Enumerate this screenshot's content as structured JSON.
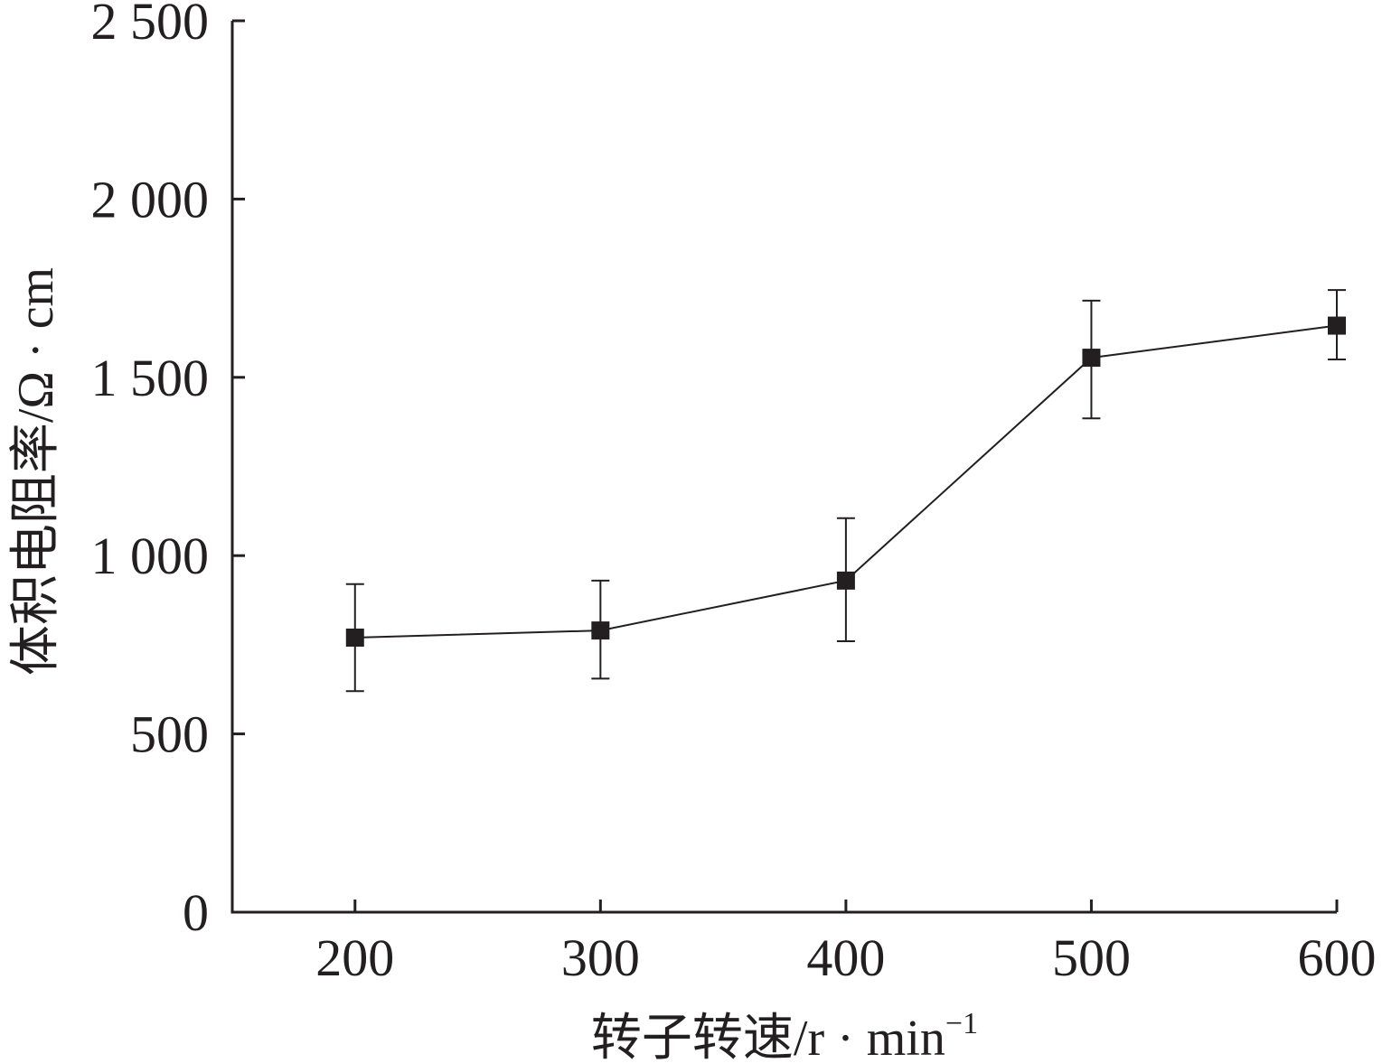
{
  "chart_data": {
    "type": "line",
    "title": "",
    "xlabel": "转子转速/r · min",
    "xlabel_superscript": "−1",
    "ylabel": "体积电阻率/Ω · cm",
    "x": [
      200,
      300,
      400,
      500,
      600
    ],
    "x_ticks": [
      "200",
      "300",
      "400",
      "500",
      "600"
    ],
    "y_ticks": [
      {
        "value": 0,
        "label": "0"
      },
      {
        "value": 500,
        "label": "500"
      },
      {
        "value": 1000,
        "label": "1 000"
      },
      {
        "value": 1500,
        "label": "1 500"
      },
      {
        "value": 2000,
        "label": "2 000"
      },
      {
        "value": 2500,
        "label": "2 500"
      }
    ],
    "xlim": [
      150,
      600
    ],
    "ylim": [
      0,
      2500
    ],
    "series": [
      {
        "values": [
          770,
          790,
          930,
          1555,
          1645
        ],
        "error_low": [
          620,
          655,
          760,
          1385,
          1550
        ],
        "error_high": [
          920,
          930,
          1105,
          1715,
          1745
        ],
        "marker": "square",
        "color": "#231f20"
      }
    ],
    "grid": false,
    "legend": "none"
  }
}
